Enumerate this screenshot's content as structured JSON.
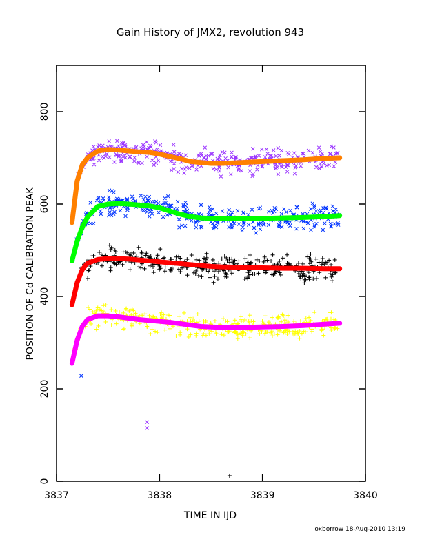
{
  "chart_data": {
    "type": "scatter",
    "title": "Gain History of JMX2, revolution 943",
    "xlabel": "TIME IN IJD",
    "ylabel": "POSITION OF Cd CALIBRATION PEAK",
    "credit": "oxborrow 18-Aug-2010 13:19",
    "xlim": [
      3837,
      3840
    ],
    "ylim": [
      0,
      900
    ],
    "xticks": [
      3837,
      3838,
      3839,
      3840
    ],
    "yticks": [
      0,
      200,
      400,
      600,
      800
    ],
    "grid": false,
    "series": [
      {
        "marker": "x",
        "color": "#9933ff",
        "fit_color": "#ff8000",
        "fit": [
          [
            3837.15,
            560
          ],
          [
            3837.2,
            650
          ],
          [
            3837.25,
            685
          ],
          [
            3837.3,
            700
          ],
          [
            3837.4,
            715
          ],
          [
            3837.5,
            718
          ],
          [
            3837.6,
            717
          ],
          [
            3837.7,
            715
          ],
          [
            3837.8,
            713
          ],
          [
            3837.9,
            712
          ],
          [
            3838.0,
            708
          ],
          [
            3838.1,
            703
          ],
          [
            3838.2,
            698
          ],
          [
            3838.3,
            692
          ],
          [
            3838.4,
            690
          ],
          [
            3838.5,
            688
          ],
          [
            3838.6,
            688
          ],
          [
            3838.7,
            689
          ],
          [
            3838.8,
            690
          ],
          [
            3838.9,
            691
          ],
          [
            3839.0,
            692
          ],
          [
            3839.2,
            694
          ],
          [
            3839.4,
            696
          ],
          [
            3839.6,
            699
          ],
          [
            3839.75,
            700
          ]
        ],
        "outliers": [
          [
            3837.88,
            128
          ],
          [
            3837.88,
            115
          ]
        ]
      },
      {
        "marker": "x",
        "color": "#0033ff",
        "fit_color": "#00ff00",
        "fit": [
          [
            3837.15,
            477
          ],
          [
            3837.2,
            520
          ],
          [
            3837.25,
            550
          ],
          [
            3837.3,
            572
          ],
          [
            3837.4,
            595
          ],
          [
            3837.5,
            600
          ],
          [
            3837.6,
            601
          ],
          [
            3837.7,
            600
          ],
          [
            3837.8,
            598
          ],
          [
            3837.9,
            596
          ],
          [
            3838.0,
            592
          ],
          [
            3838.1,
            585
          ],
          [
            3838.2,
            578
          ],
          [
            3838.3,
            573
          ],
          [
            3838.4,
            570
          ],
          [
            3838.5,
            569
          ],
          [
            3838.6,
            569
          ],
          [
            3838.8,
            569
          ],
          [
            3839.0,
            569
          ],
          [
            3839.2,
            570
          ],
          [
            3839.4,
            571
          ],
          [
            3839.6,
            573
          ],
          [
            3839.75,
            575
          ]
        ],
        "outliers": [
          [
            3837.24,
            228
          ]
        ]
      },
      {
        "marker": "+",
        "color": "#000000",
        "fit_color": "#ff0000",
        "fit": [
          [
            3837.15,
            382
          ],
          [
            3837.2,
            430
          ],
          [
            3837.25,
            458
          ],
          [
            3837.3,
            472
          ],
          [
            3837.4,
            480
          ],
          [
            3837.5,
            482
          ],
          [
            3837.6,
            482
          ],
          [
            3837.7,
            481
          ],
          [
            3837.8,
            479
          ],
          [
            3837.9,
            477
          ],
          [
            3838.0,
            475
          ],
          [
            3838.1,
            473
          ],
          [
            3838.2,
            471
          ],
          [
            3838.3,
            469
          ],
          [
            3838.4,
            467
          ],
          [
            3838.5,
            465
          ],
          [
            3838.6,
            464
          ],
          [
            3838.8,
            463
          ],
          [
            3839.0,
            462
          ],
          [
            3839.2,
            461
          ],
          [
            3839.4,
            461
          ],
          [
            3839.6,
            460
          ],
          [
            3839.75,
            460
          ]
        ],
        "outliers": [
          [
            3838.68,
            12
          ]
        ]
      },
      {
        "marker": "+",
        "color": "#ffff00",
        "fit_color": "#ff00ff",
        "fit": [
          [
            3837.15,
            255
          ],
          [
            3837.2,
            305
          ],
          [
            3837.25,
            335
          ],
          [
            3837.3,
            350
          ],
          [
            3837.4,
            358
          ],
          [
            3837.5,
            358
          ],
          [
            3837.6,
            356
          ],
          [
            3837.7,
            353
          ],
          [
            3837.8,
            350
          ],
          [
            3837.9,
            348
          ],
          [
            3838.0,
            346
          ],
          [
            3838.1,
            344
          ],
          [
            3838.2,
            341
          ],
          [
            3838.3,
            338
          ],
          [
            3838.4,
            335
          ],
          [
            3838.5,
            334
          ],
          [
            3838.6,
            333
          ],
          [
            3838.8,
            333
          ],
          [
            3839.0,
            334
          ],
          [
            3839.2,
            335
          ],
          [
            3839.4,
            337
          ],
          [
            3839.6,
            340
          ],
          [
            3839.75,
            342
          ]
        ],
        "outliers": []
      }
    ]
  }
}
